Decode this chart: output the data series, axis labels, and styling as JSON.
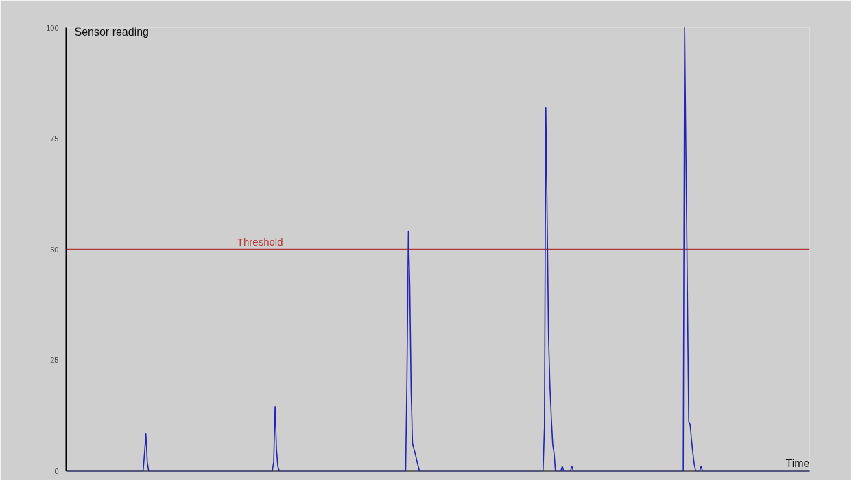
{
  "chart_data": {
    "type": "line",
    "xlabel": "Time",
    "ylabel": "Sensor reading",
    "color": "#2424b4",
    "ylim": [
      0,
      100
    ],
    "yticks": [
      0,
      25,
      50,
      75,
      100
    ],
    "tick_labels": "y",
    "ref_lines": [
      {
        "axis": "y",
        "value": 50,
        "label": "Threshold",
        "color": "#b03a3a"
      }
    ],
    "categories": [
      null,
      null,
      null,
      null,
      null,
      null,
      null,
      null,
      null,
      null,
      null,
      null,
      null,
      null,
      null,
      null,
      null,
      null,
      null,
      null,
      null,
      null,
      null,
      null,
      null,
      null,
      null,
      null,
      null,
      null,
      null,
      null,
      null,
      null,
      null,
      null,
      null,
      null,
      null,
      null,
      null,
      null,
      null,
      null,
      null,
      null,
      null,
      null,
      null,
      null,
      null,
      null,
      null,
      null,
      null,
      null,
      null,
      null,
      null,
      null,
      null,
      null,
      null,
      null,
      null,
      null,
      null,
      null,
      null,
      null,
      null,
      null,
      null,
      null,
      null,
      null,
      null,
      null,
      null,
      null,
      null,
      null,
      null,
      null,
      null,
      null,
      null,
      null,
      null,
      null,
      null,
      null,
      null,
      null,
      null,
      null,
      null,
      null,
      null,
      null,
      null,
      null,
      null,
      null,
      null,
      null,
      null,
      null,
      null,
      null,
      null,
      null,
      null,
      null,
      null,
      null,
      null,
      null,
      null,
      null,
      null,
      null,
      null,
      null,
      null,
      null,
      null,
      null,
      null,
      null,
      null,
      null,
      null,
      null,
      null,
      null,
      null,
      null,
      null,
      null,
      null,
      null,
      null,
      null,
      null,
      null,
      null,
      null,
      null,
      null,
      null,
      null,
      null,
      null,
      null,
      null,
      null,
      null,
      null,
      null,
      null,
      null,
      null,
      null,
      null,
      null,
      null,
      null,
      null,
      null,
      null,
      null,
      null,
      null,
      null,
      null,
      null,
      null,
      null,
      null,
      null,
      null,
      null,
      null,
      null,
      null,
      null,
      null,
      null,
      null,
      null,
      null,
      null,
      null,
      null,
      null,
      null,
      null,
      null,
      null,
      null,
      null,
      null,
      null,
      null,
      null,
      null,
      null,
      null,
      null,
      null,
      null,
      null,
      null,
      null,
      null,
      null,
      null,
      null,
      null,
      null,
      null,
      null,
      null,
      null,
      null,
      null,
      null,
      null,
      null,
      null,
      null,
      null,
      null,
      null,
      null,
      null,
      null,
      null,
      null,
      null,
      null,
      null,
      null,
      null,
      null,
      null,
      null,
      null,
      null,
      null,
      null,
      null,
      null,
      null,
      null,
      null,
      null,
      null,
      null,
      null,
      null,
      null,
      null,
      null,
      null,
      null,
      null,
      null,
      null,
      null,
      null,
      null,
      null,
      null,
      null,
      null,
      null,
      null,
      null,
      null,
      null,
      null,
      null,
      null,
      null,
      null,
      null,
      null,
      null,
      null,
      null,
      null,
      null,
      null,
      null,
      null,
      null,
      null,
      null,
      null,
      null,
      null,
      null,
      null,
      null,
      null,
      null,
      null,
      null,
      null,
      null,
      null,
      null,
      null,
      null,
      null,
      null,
      null,
      null,
      null,
      null,
      null,
      null,
      null,
      null,
      null,
      null,
      null,
      null,
      null,
      null,
      null,
      null,
      null,
      null,
      null,
      null,
      null,
      null,
      null,
      null,
      null,
      null,
      null,
      null,
      null,
      null,
      null,
      null,
      null,
      null,
      null,
      null,
      null,
      null,
      null,
      null,
      null,
      null,
      null,
      null,
      null,
      null,
      null,
      null,
      null,
      null,
      null,
      null,
      null,
      null,
      null,
      null,
      null,
      null,
      null,
      null,
      null,
      null,
      null,
      null,
      null,
      null,
      null,
      null,
      null,
      null,
      null,
      null,
      null,
      null,
      null,
      null,
      null,
      null,
      null,
      null,
      null,
      null,
      null,
      null,
      null,
      null,
      null,
      null,
      null,
      null,
      null,
      null,
      null,
      null,
      null,
      null,
      null,
      null,
      null,
      null,
      null,
      null,
      null,
      null,
      null,
      null,
      null,
      null,
      null,
      null,
      null,
      null,
      null,
      null,
      null,
      null,
      null,
      null,
      null,
      null,
      null,
      null,
      null,
      null,
      null,
      null,
      null,
      null,
      null,
      null,
      null,
      null,
      null,
      null,
      null,
      null,
      null,
      null,
      null,
      null,
      null,
      null,
      null,
      null,
      null,
      null,
      null,
      null,
      null,
      null,
      null,
      null,
      null,
      null,
      null,
      null,
      null,
      null,
      null,
      null,
      null,
      null,
      null,
      null,
      null,
      null,
      null,
      null,
      null,
      null,
      null,
      null,
      null,
      null,
      null,
      null,
      null,
      null,
      null,
      null,
      null,
      null,
      null,
      null,
      null,
      null,
      null,
      null,
      null,
      null,
      null,
      null,
      null,
      null,
      null,
      null,
      null,
      null,
      null,
      null,
      null,
      null,
      null,
      null,
      null,
      null,
      null,
      null,
      null,
      null,
      null,
      null,
      null,
      null,
      null,
      null,
      null,
      null,
      null,
      null,
      null,
      null,
      null,
      null
    ],
    "values": [
      0,
      0,
      0,
      0,
      0,
      0,
      0,
      0,
      0,
      0,
      0,
      0,
      0,
      0,
      0,
      0,
      0,
      0,
      0,
      0,
      0,
      0,
      0,
      0,
      0,
      0,
      0,
      0,
      0,
      0,
      0,
      0,
      0,
      0,
      0,
      0,
      0,
      0,
      0,
      0,
      0,
      0,
      0,
      0,
      0,
      0,
      0,
      0,
      0,
      0,
      0,
      0,
      0,
      0,
      0,
      0,
      0,
      4,
      8.3,
      2,
      0,
      0,
      0,
      0,
      0,
      0,
      0,
      0,
      0,
      0,
      0,
      0,
      0,
      0,
      0,
      0,
      0,
      0,
      0,
      0,
      0,
      0,
      0,
      0,
      0,
      0,
      0,
      0,
      0,
      0,
      0,
      0,
      0,
      0,
      0,
      0,
      0,
      0,
      0,
      0,
      0,
      0,
      0,
      0,
      0,
      0,
      0,
      0,
      0,
      0,
      0,
      0,
      0,
      0,
      0,
      0,
      0,
      0,
      0,
      0,
      0,
      0,
      0,
      0,
      0,
      0,
      0,
      0,
      0,
      0,
      0,
      0,
      0,
      0,
      0,
      0,
      0,
      0,
      0,
      0,
      0,
      0,
      0,
      0,
      0,
      0,
      0,
      0,
      0,
      0,
      0,
      2,
      14.5,
      5,
      1,
      0,
      0,
      0,
      0,
      0,
      0,
      0,
      0,
      0,
      0,
      0,
      0,
      0,
      0,
      0,
      0,
      0,
      0,
      0,
      0,
      0,
      0,
      0,
      0,
      0,
      0,
      0,
      0,
      0,
      0,
      0,
      0,
      0,
      0,
      0,
      0,
      0,
      0,
      0,
      0,
      0,
      0,
      0,
      0,
      0,
      0,
      0,
      0,
      0,
      0,
      0,
      0,
      0,
      0,
      0,
      0,
      0,
      0,
      0,
      0,
      0,
      0,
      0,
      0,
      0,
      0,
      0,
      0,
      0,
      0,
      0,
      0,
      0,
      0,
      0,
      0,
      0,
      0,
      0,
      0,
      0,
      0,
      0,
      0,
      0,
      0,
      0,
      0,
      0,
      0,
      0,
      0,
      0,
      22,
      54,
      42,
      18,
      6.2,
      5,
      3.8,
      2.5,
      1.2,
      0,
      0,
      0,
      0,
      0,
      0,
      0,
      0,
      0,
      0,
      0,
      0,
      0,
      0,
      0,
      0,
      0,
      0,
      0,
      0,
      0,
      0,
      0,
      0,
      0,
      0,
      0,
      0,
      0,
      0,
      0,
      0,
      0,
      0,
      0,
      0,
      0,
      0,
      0,
      0,
      0,
      0,
      0,
      0,
      0,
      0,
      0,
      0,
      0,
      0,
      0,
      0,
      0,
      0,
      0,
      0,
      0,
      0,
      0,
      0,
      0,
      0,
      0,
      0,
      0,
      0,
      0,
      0,
      0,
      0,
      0,
      0,
      0,
      0,
      0,
      0,
      0,
      0,
      0,
      0,
      0,
      0,
      0,
      0,
      0,
      0,
      0,
      0,
      0,
      0,
      0,
      10,
      82,
      56,
      30,
      19,
      12,
      6,
      4,
      0,
      0,
      0,
      0,
      0,
      1,
      0,
      0,
      0,
      0,
      0,
      0,
      1,
      0,
      0,
      0,
      0,
      0,
      0,
      0,
      0,
      0,
      0,
      0,
      0,
      0,
      0,
      0,
      0,
      0,
      0,
      0,
      0,
      0,
      0,
      0,
      0,
      0,
      0,
      0,
      0,
      0,
      0,
      0,
      0,
      0,
      0,
      0,
      0,
      0,
      0,
      0,
      0,
      0,
      0,
      0,
      0,
      0,
      0,
      0,
      0,
      0,
      0,
      0,
      0,
      0,
      0,
      0,
      0,
      0,
      0,
      0,
      0,
      0,
      0,
      0,
      0,
      0,
      0,
      0,
      0,
      0,
      0,
      0,
      0,
      0,
      0,
      0,
      0,
      0,
      0,
      0,
      0,
      0,
      100,
      70,
      41,
      11,
      10.5,
      7,
      4,
      1.5,
      0,
      0,
      0,
      0,
      1,
      0,
      0,
      0,
      0,
      0,
      0,
      0,
      0,
      0,
      0,
      0,
      0,
      0,
      0,
      0,
      0,
      0,
      0,
      0,
      0,
      0,
      0,
      0,
      0,
      0,
      0,
      0,
      0,
      0,
      0,
      0,
      0,
      0,
      0,
      0,
      0,
      0,
      0,
      0,
      0,
      0,
      0,
      0,
      0,
      0,
      0,
      0,
      0,
      0,
      0,
      0,
      0,
      0,
      0,
      0,
      0,
      0,
      0,
      0,
      0,
      0,
      0,
      0,
      0,
      0,
      0,
      0,
      0,
      0,
      0,
      0,
      0,
      0,
      0,
      0,
      0,
      0,
      0,
      0
    ]
  }
}
